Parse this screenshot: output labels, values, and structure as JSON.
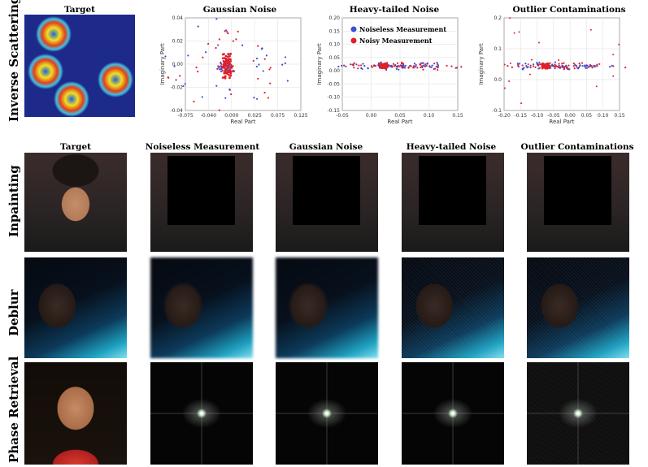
{
  "rows": {
    "inverse_scattering": "Inverse Scattering",
    "inpainting": "Inpainting",
    "deblur": "Deblur",
    "phase_retrieval": "Phase Retrieval"
  },
  "top": {
    "target_title": "Target",
    "plots": [
      {
        "title": "Gaussian Noise",
        "xlabel": "Real Part",
        "ylabel": "Imaginary Part",
        "xticks": [
          "-0.075",
          "-0.040",
          "0.000",
          "0.025",
          "0.075",
          "0.125"
        ],
        "yticks": [
          "0.04",
          "0.02",
          "0.00",
          "-0.02",
          "-0.04"
        ]
      },
      {
        "title": "Heavy-tailed Noise",
        "xlabel": "Real Part",
        "ylabel": "Imaginary Part",
        "xticks": [
          "-0.05",
          "0.00",
          "0.05",
          "0.10",
          "0.15"
        ],
        "yticks": [
          "0.20",
          "0.15",
          "0.10",
          "0.05",
          "0.00",
          "-0.05",
          "-0.10",
          "-0.15"
        ],
        "legend": [
          "Noiseless Measurement",
          "Noisy Measurement"
        ]
      },
      {
        "title": "Outlier Contaminations",
        "xlabel": "Real Part",
        "ylabel": "Imaginary Part",
        "xticks": [
          "-0.20",
          "-0.15",
          "-0.10",
          "-0.05",
          "0.00",
          "0.05",
          "0.10",
          "0.15"
        ],
        "yticks": [
          "0.2",
          "0.1",
          "0.0",
          "-0.1"
        ]
      }
    ]
  },
  "bottom_titles": [
    "Target",
    "Noiseless Measurement",
    "Gaussian Noise",
    "Heavy-tailed Noise",
    "Outlier Contaminations"
  ],
  "colors": {
    "noiseless": "#3a52d4",
    "noisy": "#e0202a",
    "grid": "#dddddd"
  }
}
